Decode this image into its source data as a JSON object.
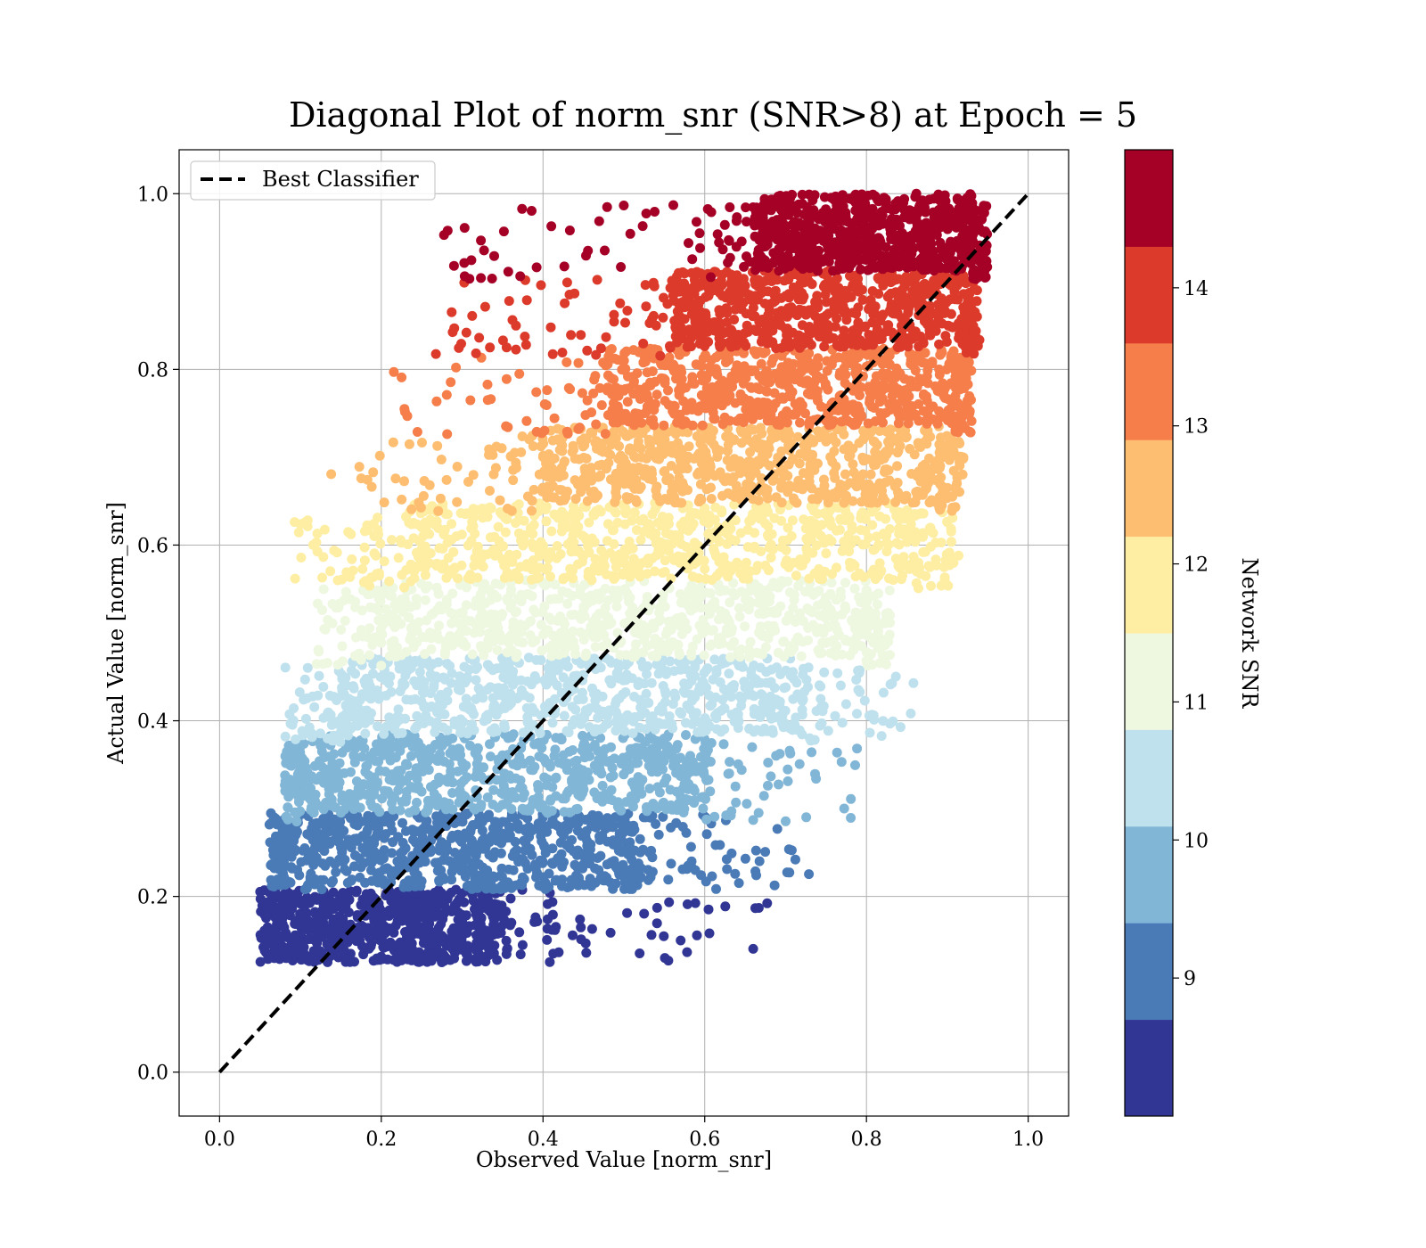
{
  "chart_data": {
    "type": "scatter",
    "title": "Diagonal Plot of norm_snr (SNR>8) at Epoch = 5",
    "xlabel": "Observed Value [norm_snr]",
    "ylabel": "Actual Value [norm_snr]",
    "xlim": [
      -0.05,
      1.05
    ],
    "ylim": [
      -0.05,
      1.05
    ],
    "x_ticks": [
      "0.0",
      "0.2",
      "0.4",
      "0.6",
      "0.8",
      "1.0"
    ],
    "y_ticks": [
      "0.0",
      "0.2",
      "0.4",
      "0.6",
      "0.8",
      "1.0"
    ],
    "x_tick_values": [
      0.0,
      0.2,
      0.4,
      0.6,
      0.8,
      1.0
    ],
    "y_tick_values": [
      0.0,
      0.2,
      0.4,
      0.6,
      0.8,
      1.0
    ],
    "grid": true,
    "legend": {
      "placement": "top-left",
      "entries": [
        "Best Classifier"
      ]
    },
    "reference_line": {
      "name": "Best Classifier",
      "x": [
        0.0,
        1.0
      ],
      "y": [
        0.0,
        1.0
      ],
      "style": "dashed",
      "color": "#000000"
    },
    "colorbar": {
      "label": "Network SNR",
      "range": [
        8.0,
        15.0
      ],
      "ticks": [
        "9",
        "10",
        "11",
        "12",
        "13",
        "14"
      ],
      "tick_values": [
        9,
        10,
        11,
        12,
        13,
        14
      ],
      "bands": [
        {
          "color": "#313695"
        },
        {
          "color": "#4a7bb7"
        },
        {
          "color": "#82b6d7"
        },
        {
          "color": "#bfe1ed"
        },
        {
          "color": "#eef7e0"
        },
        {
          "color": "#feeea3"
        },
        {
          "color": "#fdbe71"
        },
        {
          "color": "#f57e4b"
        },
        {
          "color": "#dc3a2b"
        },
        {
          "color": "#a50026"
        }
      ]
    },
    "point_bands": [
      {
        "y_range": [
          0.125,
          0.208
        ],
        "x_core": [
          0.07,
          0.35
        ],
        "x_spread": [
          0.05,
          0.68
        ]
      },
      {
        "y_range": [
          0.208,
          0.295
        ],
        "x_core": [
          0.08,
          0.52
        ],
        "x_spread": [
          0.06,
          0.73
        ]
      },
      {
        "y_range": [
          0.295,
          0.385
        ],
        "x_core": [
          0.1,
          0.6
        ],
        "x_spread": [
          0.08,
          0.8
        ]
      },
      {
        "y_range": [
          0.385,
          0.472
        ],
        "x_core": [
          0.16,
          0.72
        ],
        "x_spread": [
          0.08,
          0.86
        ]
      },
      {
        "y_range": [
          0.472,
          0.56
        ],
        "x_core": [
          0.2,
          0.8
        ],
        "x_spread": [
          0.12,
          0.83
        ]
      },
      {
        "y_range": [
          0.56,
          0.648
        ],
        "x_core": [
          0.24,
          0.86
        ],
        "x_spread": [
          0.09,
          0.92
        ]
      },
      {
        "y_range": [
          0.648,
          0.736
        ],
        "x_core": [
          0.4,
          0.89
        ],
        "x_spread": [
          0.12,
          0.92
        ]
      },
      {
        "y_range": [
          0.736,
          0.824
        ],
        "x_core": [
          0.48,
          0.91
        ],
        "x_spread": [
          0.2,
          0.93
        ]
      },
      {
        "y_range": [
          0.824,
          0.912
        ],
        "x_core": [
          0.56,
          0.92
        ],
        "x_spread": [
          0.26,
          0.94
        ]
      },
      {
        "y_range": [
          0.912,
          1.0
        ],
        "x_core": [
          0.66,
          0.93
        ],
        "x_spread": [
          0.27,
          0.95
        ]
      }
    ]
  }
}
